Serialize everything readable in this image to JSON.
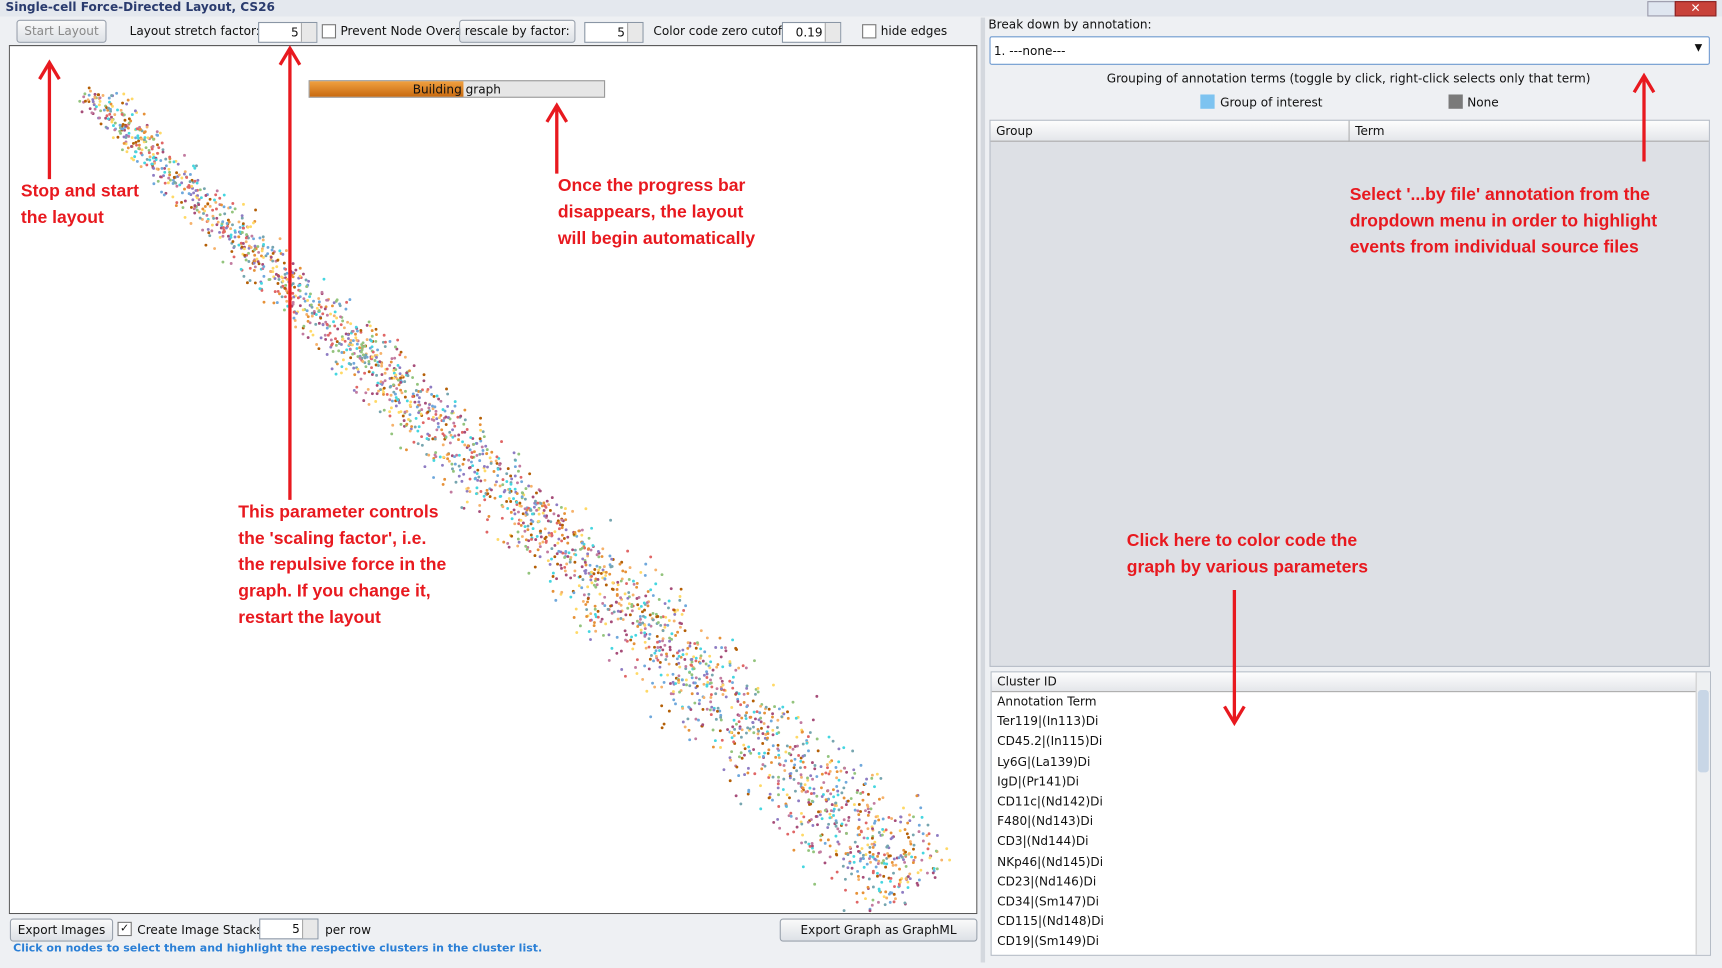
{
  "window": {
    "title": "Single-cell Force-Directed Layout, CS26"
  },
  "toolbar": {
    "start_button": "Start Layout",
    "stretch_label": "Layout stretch factor:",
    "stretch_value": "5",
    "prevent_overlap": "Prevent Node Overap",
    "rescale_button": "rescale by factor:",
    "rescale_value": "5",
    "cutoff_label": "Color code zero cutoff:",
    "cutoff_value": "0.19",
    "hide_edges": "hide edges"
  },
  "progress": {
    "label": "Building graph"
  },
  "annotations": {
    "start": [
      "Stop and start",
      "the layout"
    ],
    "progress": [
      "Once the progress bar",
      "disappears, the layout",
      "will begin automatically"
    ],
    "stretch": [
      "This parameter controls",
      "the 'scaling factor', i.e.",
      "the repulsive force in the",
      "graph. If you change it,",
      "restart the layout"
    ],
    "dropdown": [
      "Select '...by file' annotation from the",
      "dropdown menu in order to highlight",
      "events from individual source files"
    ],
    "color": [
      "Click here to color code the",
      "graph by various parameters"
    ]
  },
  "right_panel": {
    "breakdown_label": "Break down by annotation:",
    "dropdown_value": "1. ---none---",
    "grouping_text": "Grouping of annotation terms (toggle by click, right-click selects only that term)",
    "legend": [
      "Group of interest",
      "None"
    ],
    "table_headers": [
      "Group",
      "Term"
    ]
  },
  "cluster_list": {
    "header": "Cluster ID",
    "items": [
      "Annotation Term",
      "Ter119|(In113)Di",
      "CD45.2|(In115)Di",
      "Ly6G|(La139)Di",
      "IgD|(Pr141)Di",
      "CD11c|(Nd142)Di",
      "F480|(Nd143)Di",
      "CD3|(Nd144)Di",
      "NKp46|(Nd145)Di",
      "CD23|(Nd146)Di",
      "CD34|(Sm147)Di",
      "CD115|(Nd148)Di",
      "CD19|(Sm149)Di"
    ]
  },
  "bottom": {
    "export_images": "Export Images",
    "create_stacks": "Create Image Stacks",
    "per_row_value": "5",
    "per_row": "per row",
    "export_graphml": "Export Graph as GraphML",
    "status": "Click on nodes to select them and highlight the respective clusters in the cluster list."
  }
}
